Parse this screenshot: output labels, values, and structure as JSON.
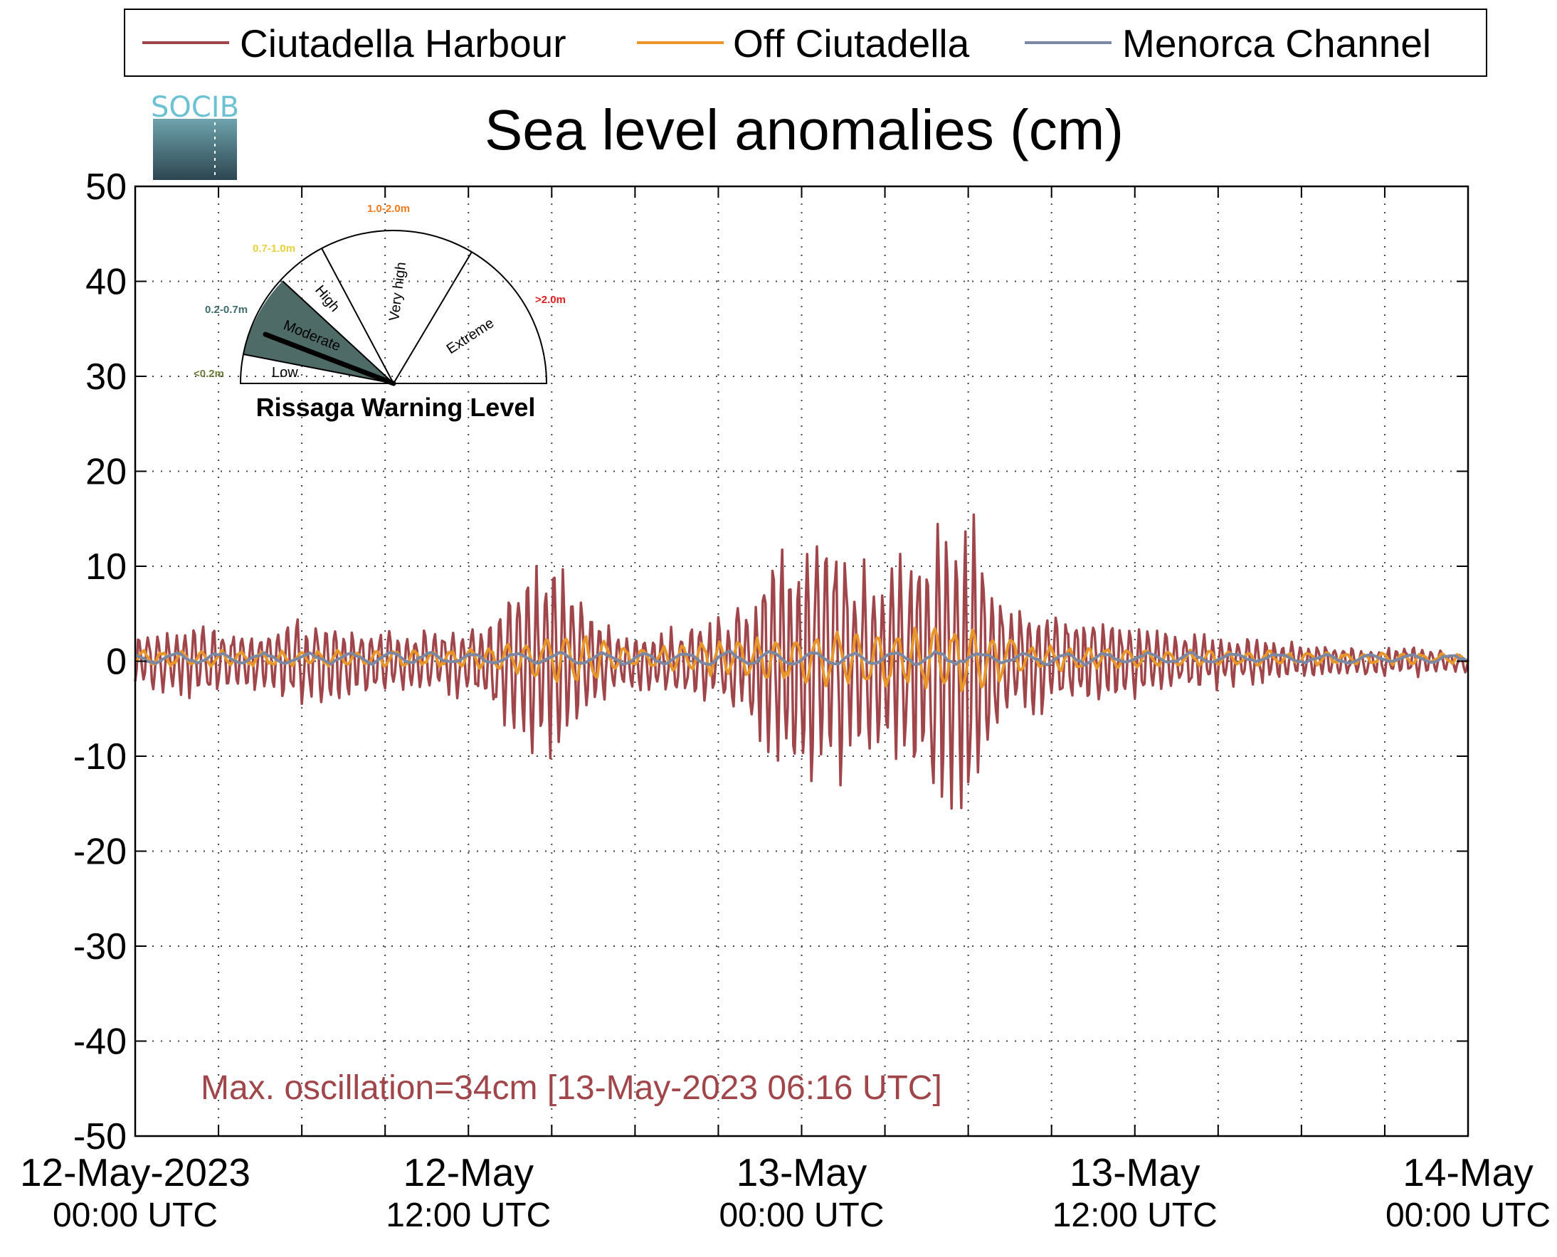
{
  "chart_data": {
    "type": "line",
    "title": "Sea level anomalies (cm)",
    "ylim": [
      -50,
      50
    ],
    "yticks": [
      50,
      40,
      30,
      20,
      10,
      0,
      -10,
      -20,
      -30,
      -40,
      -50
    ],
    "xrange": [
      "2023-05-12T00:00Z",
      "2023-05-14T00:00Z"
    ],
    "xticks": [
      {
        "t": 0,
        "line1": "12-May-2023",
        "line2": "00:00 UTC"
      },
      {
        "t": 12,
        "line1": "12-May",
        "line2": "12:00 UTC"
      },
      {
        "t": 24,
        "line1": "13-May",
        "line2": "00:00 UTC"
      },
      {
        "t": 36,
        "line1": "13-May",
        "line2": "12:00 UTC"
      },
      {
        "t": 48,
        "line1": "14-May",
        "line2": "00:00 UTC"
      }
    ],
    "grid": true,
    "legend_position": "top",
    "series": [
      {
        "name": "Ciutadella Harbour",
        "color": "#a0464b",
        "envelope": [
          [
            0,
            3
          ],
          [
            2,
            4
          ],
          [
            4,
            3
          ],
          [
            6,
            5
          ],
          [
            8,
            4
          ],
          [
            10,
            3
          ],
          [
            12,
            4
          ],
          [
            13,
            6
          ],
          [
            14,
            9
          ],
          [
            15,
            12
          ],
          [
            16,
            7
          ],
          [
            17,
            4
          ],
          [
            18,
            3
          ],
          [
            20,
            4
          ],
          [
            22,
            6
          ],
          [
            23,
            13
          ],
          [
            24,
            14
          ],
          [
            25,
            15
          ],
          [
            26,
            11
          ],
          [
            27,
            10
          ],
          [
            28,
            13
          ],
          [
            29,
            16
          ],
          [
            30,
            18
          ],
          [
            31,
            8
          ],
          [
            32,
            6
          ],
          [
            34,
            5
          ],
          [
            36,
            4
          ],
          [
            38,
            3
          ],
          [
            40,
            2.5
          ],
          [
            42,
            2
          ],
          [
            44,
            1.5
          ],
          [
            46,
            1.5
          ],
          [
            48,
            1
          ]
        ]
      },
      {
        "name": "Off Ciutadella",
        "color": "#e8962a",
        "envelope": [
          [
            0,
            0.8
          ],
          [
            12,
            1
          ],
          [
            14,
            2
          ],
          [
            16,
            3
          ],
          [
            18,
            1
          ],
          [
            23,
            2.5
          ],
          [
            25,
            3
          ],
          [
            28,
            3.5
          ],
          [
            30,
            4
          ],
          [
            32,
            1.5
          ],
          [
            36,
            1
          ],
          [
            48,
            0.5
          ]
        ]
      },
      {
        "name": "Menorca Channel",
        "color": "#7a88a4",
        "envelope": [
          [
            0,
            0.6
          ],
          [
            12,
            0.6
          ],
          [
            24,
            0.8
          ],
          [
            36,
            0.6
          ],
          [
            48,
            0.4
          ]
        ]
      }
    ],
    "annotation": "Max. oscillation=34cm [13-May-2023 06:16 UTC]",
    "annotation_color": "#a0464b"
  },
  "logo": {
    "text": "SOCIB"
  },
  "gauge": {
    "title": "Rissaga Warning Level",
    "active_level": "Moderate",
    "sectors": [
      {
        "name": "Low",
        "range": "<0.2m",
        "range_color": "#6b7b3c"
      },
      {
        "name": "Moderate",
        "range": "0.2-0.7m",
        "range_color": "#3f6b6b"
      },
      {
        "name": "High",
        "range": "0.7-1.0m",
        "range_color": "#e6d23a"
      },
      {
        "name": "Very high",
        "range": "1.0-2.0m",
        "range_color": "#f07a1a"
      },
      {
        "name": "Extreme",
        "range": ">2.0m",
        "range_color": "#e02020"
      }
    ]
  }
}
